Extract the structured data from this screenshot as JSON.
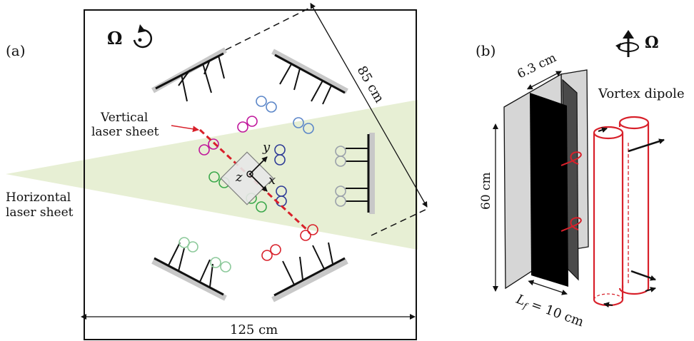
{
  "panel_a": {
    "label": "(a)",
    "omega": "Ω",
    "vertical_laser_label_line1": "Vertical",
    "vertical_laser_label_line2": "laser sheet",
    "horizontal_laser_label_line1": "Horizontal",
    "horizontal_laser_label_line2": "laser sheet",
    "dim_diagonal": "85 cm",
    "dim_width": "125 cm",
    "axis_x": "x",
    "axis_y": "y",
    "axis_z": "z"
  },
  "panel_b": {
    "label": "(b)",
    "omega": "Ω",
    "dim_gap": "6.3 cm",
    "dim_height": "60 cm",
    "dim_flap": "L",
    "dim_flap_sub": "f",
    "dim_flap_value": " = 10 cm",
    "vortex_label": "Vortex dipole"
  },
  "colors": {
    "laser_sheet": "#e4edcf",
    "plate_gray": "#c8c8c8",
    "red": "#d8202a",
    "magenta": "#c0169b",
    "blue": "#5b86c8",
    "navy": "#2e3b96",
    "green": "#3aa84a",
    "light_green": "#8cc99a",
    "gray_pair": "#9aa0aa",
    "dark_plate": "#4a4a4a"
  }
}
